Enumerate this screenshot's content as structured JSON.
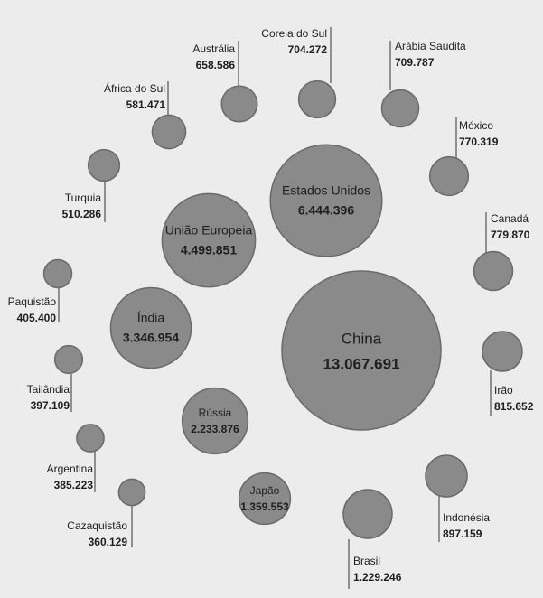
{
  "chart_data": {
    "type": "bubble",
    "categories": [
      "China",
      "Estados Unidos",
      "União Europeia",
      "Índia",
      "Rússia",
      "Japão",
      "Brasil",
      "Indonésia",
      "Irão",
      "Canadá",
      "México",
      "Arábia Saudita",
      "Coreia do Sul",
      "Austrália",
      "África do Sul",
      "Turquia",
      "Paquistão",
      "Tailândia",
      "Argentina",
      "Cazaquistão"
    ],
    "values": [
      13067691,
      6444396,
      4499851,
      3346954,
      2233876,
      1359553,
      1229246,
      897159,
      815652,
      779870,
      770319,
      709787,
      704272,
      658586,
      581471,
      510286,
      405400,
      397109,
      385223,
      360129
    ],
    "value_labels": [
      "13.067.691",
      "6.444.396",
      "4.499.851",
      "3.346.954",
      "2.233.876",
      "1.359.553",
      "1.229.246",
      "897.159",
      "815.652",
      "779.870",
      "770.319",
      "709.787",
      "704.272",
      "658.586",
      "581.471",
      "510.286",
      "405.400",
      "397.109",
      "385.223",
      "360.129"
    ],
    "color": "#8a8a8a"
  }
}
